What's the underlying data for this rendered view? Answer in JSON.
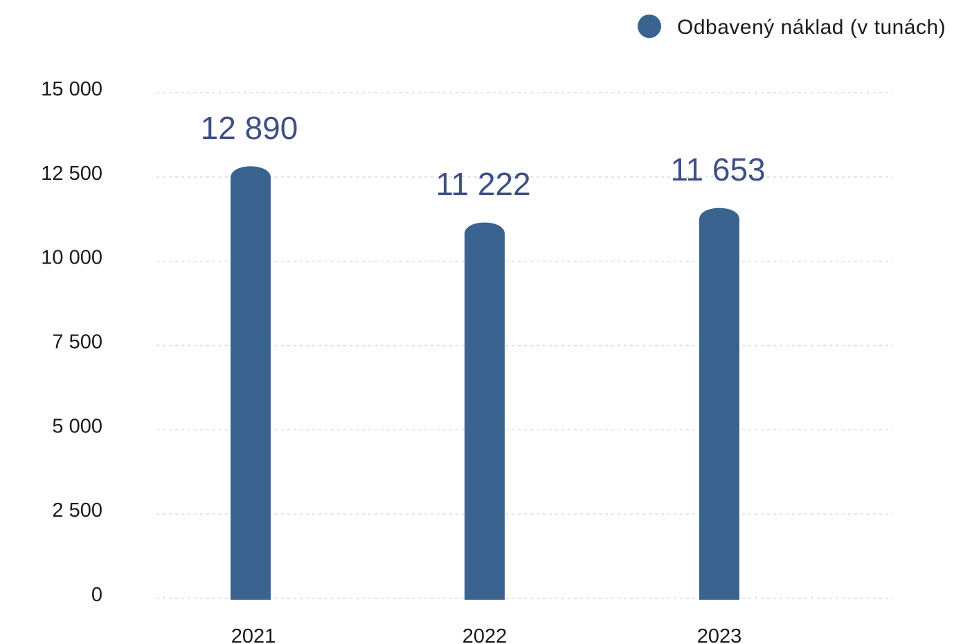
{
  "chart_data": {
    "type": "bar",
    "categories": [
      "2021",
      "2022",
      "2023"
    ],
    "series": [
      {
        "name": "Odbavený náklad (v tunách)",
        "values": [
          12890,
          11222,
          11653
        ],
        "value_labels": [
          "12 890",
          "11 222",
          "11 653"
        ],
        "color": "#3a648f"
      }
    ],
    "ylim": [
      0,
      15000
    ],
    "yticks": [
      0,
      2500,
      5000,
      7500,
      10000,
      12500,
      15000
    ],
    "ytick_labels": [
      "0",
      "2 500",
      "5 000",
      "7 500",
      "10 000",
      "12 500",
      "15 000"
    ],
    "grid": true,
    "legend_position": "top-right",
    "data_label_color": "#3d4f85"
  }
}
